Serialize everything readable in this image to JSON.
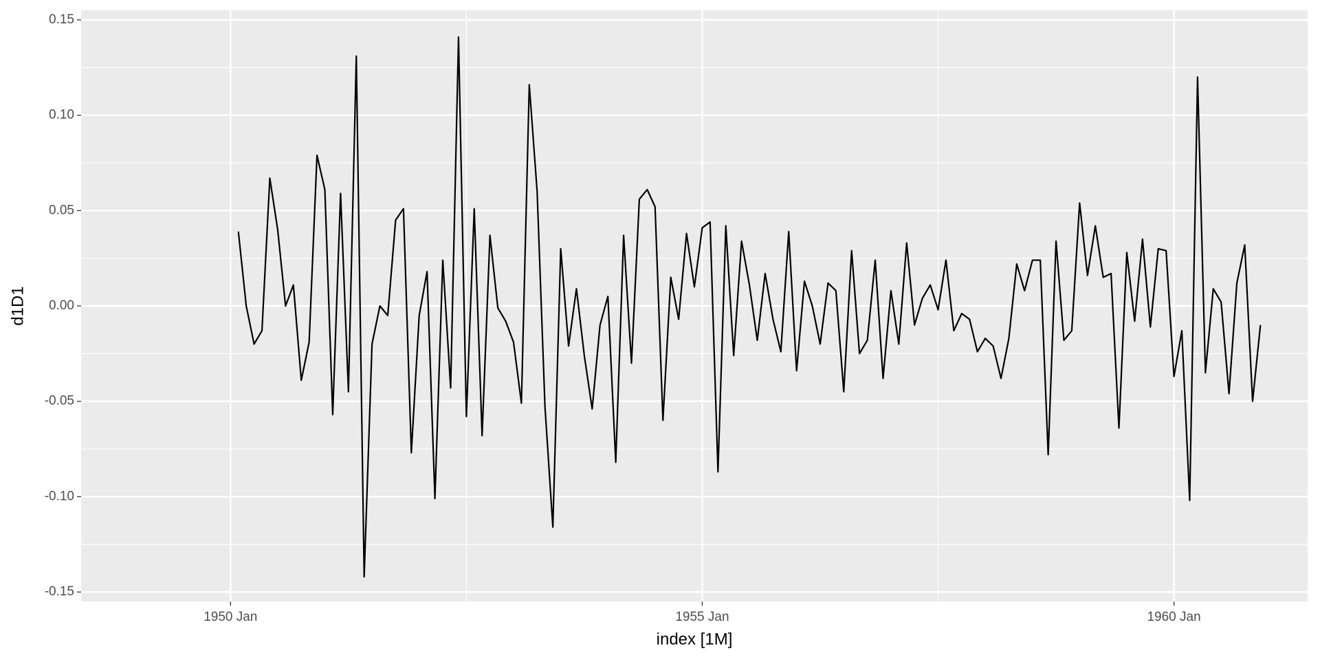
{
  "chart_data": {
    "type": "line",
    "x_label": "index [1M]",
    "y_label": "d1D1",
    "color": "#000000",
    "grid": true,
    "x": [
      "1950 Feb",
      "1950 Mar",
      "1950 Apr",
      "1950 May",
      "1950 Jun",
      "1950 Jul",
      "1950 Aug",
      "1950 Sep",
      "1950 Oct",
      "1950 Nov",
      "1950 Dec",
      "1951 Jan",
      "1951 Feb",
      "1951 Mar",
      "1951 Apr",
      "1951 May",
      "1951 Jun",
      "1951 Jul",
      "1951 Aug",
      "1951 Sep",
      "1951 Oct",
      "1951 Nov",
      "1951 Dec",
      "1952 Jan",
      "1952 Feb",
      "1952 Mar",
      "1952 Apr",
      "1952 May",
      "1952 Jun",
      "1952 Jul",
      "1952 Aug",
      "1952 Sep",
      "1952 Oct",
      "1952 Nov",
      "1952 Dec",
      "1953 Jan",
      "1953 Feb",
      "1953 Mar",
      "1953 Apr",
      "1953 May",
      "1953 Jun",
      "1953 Jul",
      "1953 Aug",
      "1953 Sep",
      "1953 Oct",
      "1953 Nov",
      "1953 Dec",
      "1954 Jan",
      "1954 Feb",
      "1954 Mar",
      "1954 Apr",
      "1954 May",
      "1954 Jun",
      "1954 Jul",
      "1954 Aug",
      "1954 Sep",
      "1954 Oct",
      "1954 Nov",
      "1954 Dec",
      "1955 Jan",
      "1955 Feb",
      "1955 Mar",
      "1955 Apr",
      "1955 May",
      "1955 Jun",
      "1955 Jul",
      "1955 Aug",
      "1955 Sep",
      "1955 Oct",
      "1955 Nov",
      "1955 Dec",
      "1956 Jan",
      "1956 Feb",
      "1956 Mar",
      "1956 Apr",
      "1956 May",
      "1956 Jun",
      "1956 Jul",
      "1956 Aug",
      "1956 Sep",
      "1956 Oct",
      "1956 Nov",
      "1956 Dec",
      "1957 Jan",
      "1957 Feb",
      "1957 Mar",
      "1957 Apr",
      "1957 May",
      "1957 Jun",
      "1957 Jul",
      "1957 Aug",
      "1957 Sep",
      "1957 Oct",
      "1957 Nov",
      "1957 Dec",
      "1958 Jan",
      "1958 Feb",
      "1958 Mar",
      "1958 Apr",
      "1958 May",
      "1958 Jun",
      "1958 Jul",
      "1958 Aug",
      "1958 Sep",
      "1958 Oct",
      "1958 Nov",
      "1958 Dec",
      "1959 Jan",
      "1959 Feb",
      "1959 Mar",
      "1959 Apr",
      "1959 May",
      "1959 Jun",
      "1959 Jul",
      "1959 Aug",
      "1959 Sep",
      "1959 Oct",
      "1959 Nov",
      "1959 Dec",
      "1960 Jan",
      "1960 Feb",
      "1960 Mar",
      "1960 Apr",
      "1960 May",
      "1960 Jun",
      "1960 Jul",
      "1960 Aug",
      "1960 Sep",
      "1960 Oct",
      "1960 Nov",
      "1960 Dec"
    ],
    "values": [
      0.039,
      0.0,
      -0.02,
      -0.013,
      0.067,
      0.04,
      0.0,
      0.011,
      -0.039,
      -0.019,
      0.079,
      0.061,
      -0.057,
      0.059,
      -0.045,
      0.131,
      -0.142,
      -0.02,
      0.0,
      -0.005,
      0.045,
      0.051,
      -0.077,
      -0.005,
      0.018,
      -0.101,
      0.024,
      -0.043,
      0.141,
      -0.058,
      0.051,
      -0.068,
      0.037,
      -0.001,
      -0.008,
      -0.019,
      -0.051,
      0.116,
      0.06,
      -0.053,
      -0.116,
      0.03,
      -0.021,
      0.009,
      -0.026,
      -0.054,
      -0.01,
      0.005,
      -0.082,
      0.037,
      -0.03,
      0.056,
      0.061,
      0.052,
      -0.06,
      0.015,
      -0.007,
      0.038,
      0.01,
      0.041,
      0.044,
      -0.087,
      0.042,
      -0.026,
      0.034,
      0.011,
      -0.018,
      0.017,
      -0.007,
      -0.024,
      0.039,
      -0.034,
      0.013,
      0.0,
      -0.02,
      0.012,
      0.008,
      -0.045,
      0.029,
      -0.025,
      -0.018,
      0.024,
      -0.038,
      0.008,
      -0.02,
      0.033,
      -0.01,
      0.004,
      0.011,
      -0.002,
      0.024,
      -0.013,
      -0.004,
      -0.007,
      -0.024,
      -0.017,
      -0.021,
      -0.038,
      -0.017,
      0.022,
      0.008,
      0.024,
      0.024,
      -0.078,
      0.034,
      -0.018,
      -0.013,
      0.054,
      0.016,
      0.042,
      0.015,
      0.017,
      -0.064,
      0.028,
      -0.008,
      0.035,
      -0.011,
      0.03,
      0.029,
      -0.037,
      -0.013,
      -0.102,
      0.12,
      -0.035,
      0.009,
      0.002,
      -0.046,
      0.012,
      0.032,
      -0.05,
      -0.01
    ],
    "xlim": [
      "1948 Jun",
      "1961 Jun"
    ],
    "xticks": [
      "1950 Jan",
      "1955 Jan",
      "1960 Jan"
    ],
    "ylim": [
      -0.155,
      0.155
    ],
    "yticks": [
      0.15,
      {
        "value": 0.1,
        "label": "0.10"
      },
      0.05,
      {
        "value": 0,
        "label": "0.00"
      },
      -0.05,
      {
        "value": -0.1,
        "label": "-0.10"
      },
      -0.15
    ]
  }
}
